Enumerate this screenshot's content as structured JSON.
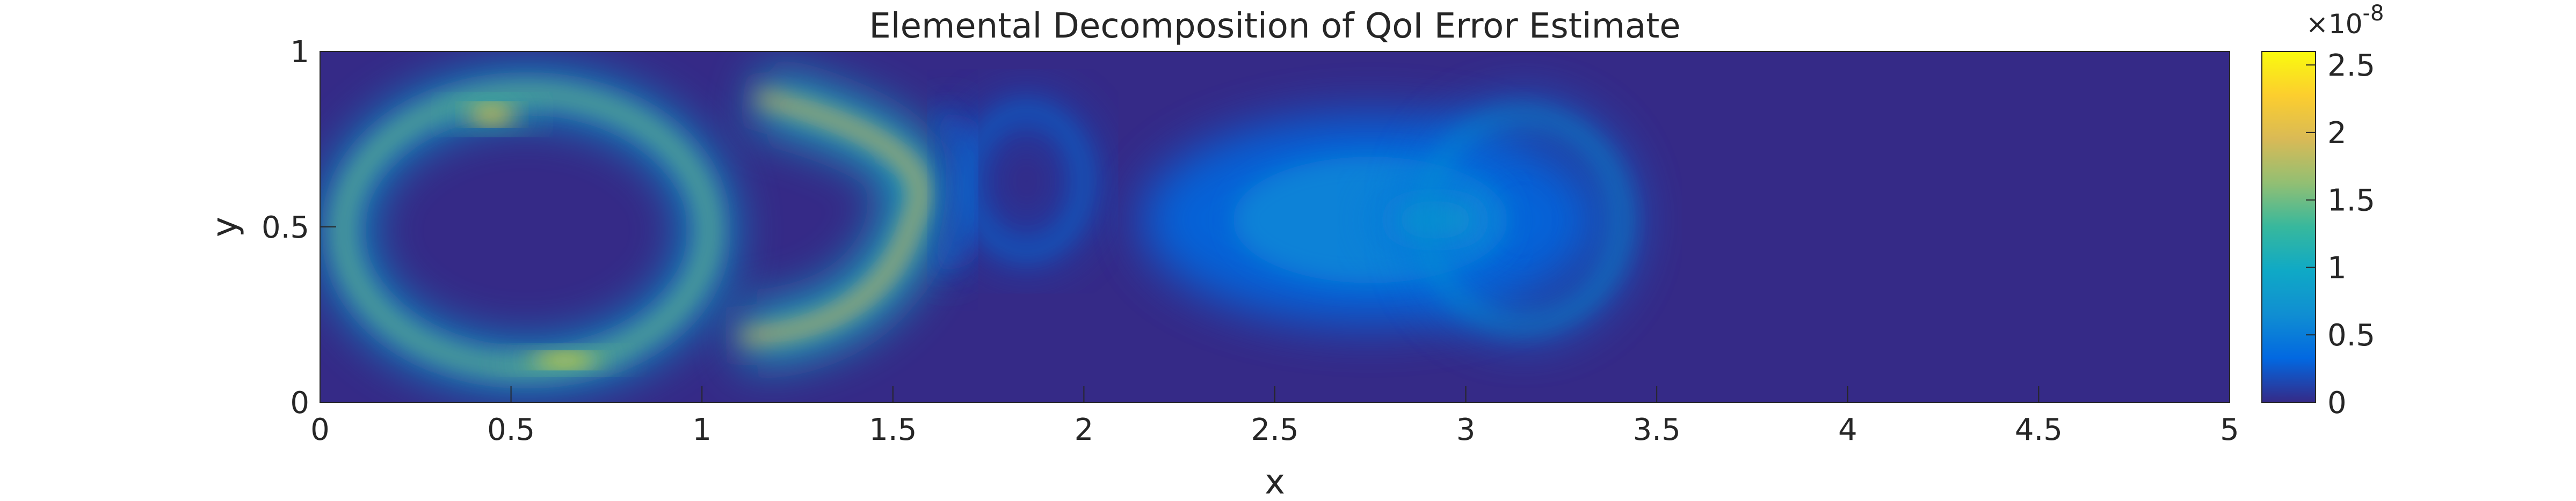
{
  "chart_data": {
    "type": "heatmap",
    "title": "Elemental Decomposition of QoI Error Estimate",
    "xlabel": "x",
    "ylabel": "y",
    "xlim": [
      0,
      5
    ],
    "ylim": [
      0,
      1
    ],
    "x_ticks": [
      "0",
      "0.5",
      "1",
      "1.5",
      "2",
      "2.5",
      "3",
      "3.5",
      "4",
      "4.5",
      "5"
    ],
    "y_ticks": [
      "0",
      "0.5",
      "1"
    ],
    "colorbar": {
      "range": [
        0,
        2.6
      ],
      "exponent_label": "×10",
      "exponent": "-8",
      "ticks": [
        "0",
        "0.5",
        "1",
        "1.5",
        "2",
        "2.5"
      ],
      "colormap": "parula",
      "colors": [
        "#352a87",
        "#0268e1",
        "#108ed2",
        "#0fa9c6",
        "#37b89d",
        "#92bf73",
        "#d9ba56",
        "#fcce2e",
        "#f9fb0e"
      ]
    },
    "background_color": "#352a87",
    "features": [
      {
        "name": "ring-left",
        "shape": "ring",
        "center": [
          0.54,
          0.49
        ],
        "radii": [
          0.48,
          0.39
        ],
        "peak": 1.5
      },
      {
        "name": "ring-left-top-hot",
        "shape": "spot",
        "center": [
          0.45,
          0.82
        ],
        "radii": [
          0.1,
          0.04
        ],
        "peak": 2.2
      },
      {
        "name": "ring-left-bottom-hot",
        "shape": "spot",
        "center": [
          0.64,
          0.12
        ],
        "radii": [
          0.14,
          0.03
        ],
        "peak": 2.4
      },
      {
        "name": "arc-middle",
        "shape": "arc",
        "center": [
          1.3,
          0.52
        ],
        "radii": [
          0.28,
          0.35
        ],
        "peak": 2.0
      },
      {
        "name": "faint-ring",
        "shape": "ring",
        "center": [
          1.85,
          0.63
        ],
        "radii": [
          0.15,
          0.2
        ],
        "peak": 0.45
      },
      {
        "name": "faint-arc",
        "shape": "arc",
        "center": [
          1.65,
          0.6
        ],
        "radii": [
          0.05,
          0.22
        ],
        "peak": 0.4
      },
      {
        "name": "wake-plume",
        "shape": "spot",
        "center": [
          2.75,
          0.52
        ],
        "radii": [
          0.6,
          0.3
        ],
        "peak": 0.55
      },
      {
        "name": "wake-core",
        "shape": "spot",
        "center": [
          2.92,
          0.52
        ],
        "radii": [
          0.16,
          0.09
        ],
        "peak": 0.8
      },
      {
        "name": "cylinder-ring",
        "shape": "ring",
        "center": [
          3.15,
          0.52
        ],
        "radii": [
          0.26,
          0.3
        ],
        "peak": 0.75
      }
    ]
  }
}
